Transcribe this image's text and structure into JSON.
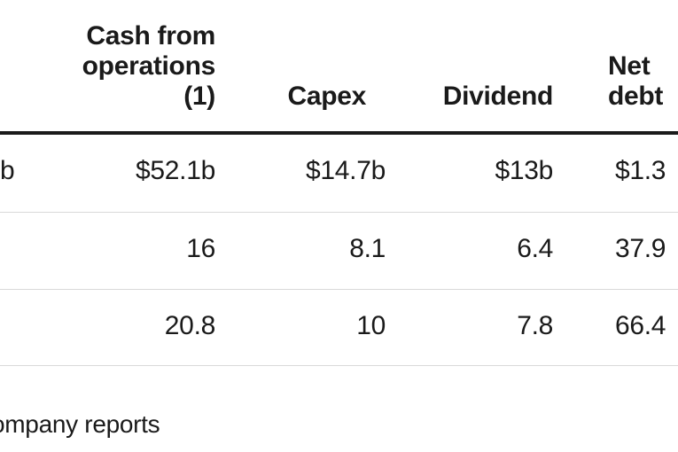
{
  "chart_data": {
    "type": "table",
    "columns": [
      "",
      "Cash from operations (1)",
      "Capex",
      "Dividend",
      "Net debt"
    ],
    "header": {
      "first": "",
      "cash_from_operations": [
        "Cash from",
        "operations",
        "(1)"
      ],
      "capex": "Capex",
      "dividend": "Dividend",
      "net_debt": [
        "Net",
        "debt"
      ]
    },
    "rows": [
      {
        "first": "b",
        "cash_from_operations": "$52.1b",
        "capex": "$14.7b",
        "dividend": "$13b",
        "net_debt": "$1.3"
      },
      {
        "first": "",
        "cash_from_operations": "16",
        "capex": "8.1",
        "dividend": "6.4",
        "net_debt": "37.9"
      },
      {
        "first": "",
        "cash_from_operations": "20.8",
        "capex": "10",
        "dividend": "7.8",
        "net_debt": "66.4"
      }
    ],
    "source": "ompany reports"
  }
}
